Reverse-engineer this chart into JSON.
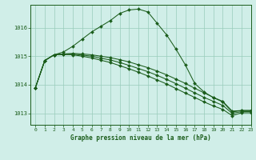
{
  "title": "Graphe pression niveau de la mer (hPa)",
  "background_color": "#d0eee8",
  "grid_color": "#99ccbb",
  "line_color": "#1a5c1a",
  "xlim": [
    -0.5,
    23
  ],
  "ylim": [
    1012.6,
    1016.8
  ],
  "yticks": [
    1013,
    1014,
    1015,
    1016
  ],
  "xtick_labels": [
    "0",
    "1",
    "2",
    "3",
    "4",
    "5",
    "6",
    "7",
    "8",
    "9",
    "10",
    "11",
    "12",
    "13",
    "14",
    "15",
    "16",
    "17",
    "18",
    "19",
    "20",
    "21",
    "22",
    "23"
  ],
  "lines": [
    [
      1013.9,
      1014.85,
      1015.05,
      1015.15,
      1015.35,
      1015.6,
      1015.85,
      1016.05,
      1016.25,
      1016.5,
      1016.62,
      1016.65,
      1016.55,
      1016.15,
      1015.75,
      1015.25,
      1014.7,
      1014.05,
      1013.75,
      1013.55,
      1013.4,
      1013.05,
      1013.1,
      1013.1
    ],
    [
      1013.9,
      1014.85,
      1015.05,
      1015.08,
      1015.1,
      1015.08,
      1015.05,
      1015.0,
      1014.95,
      1014.88,
      1014.8,
      1014.7,
      1014.6,
      1014.48,
      1014.35,
      1014.2,
      1014.05,
      1013.88,
      1013.72,
      1013.56,
      1013.42,
      1013.08,
      1013.1,
      1013.1
    ],
    [
      1013.9,
      1014.85,
      1015.05,
      1015.07,
      1015.07,
      1015.04,
      1015.0,
      1014.93,
      1014.87,
      1014.78,
      1014.68,
      1014.57,
      1014.46,
      1014.33,
      1014.19,
      1014.04,
      1013.88,
      1013.72,
      1013.56,
      1013.42,
      1013.28,
      1013.0,
      1013.06,
      1013.06
    ],
    [
      1013.9,
      1014.85,
      1015.05,
      1015.06,
      1015.05,
      1015.0,
      1014.94,
      1014.86,
      1014.78,
      1014.67,
      1014.56,
      1014.44,
      1014.31,
      1014.17,
      1014.03,
      1013.87,
      1013.71,
      1013.56,
      1013.4,
      1013.26,
      1013.14,
      1012.92,
      1013.02,
      1013.02
    ]
  ]
}
